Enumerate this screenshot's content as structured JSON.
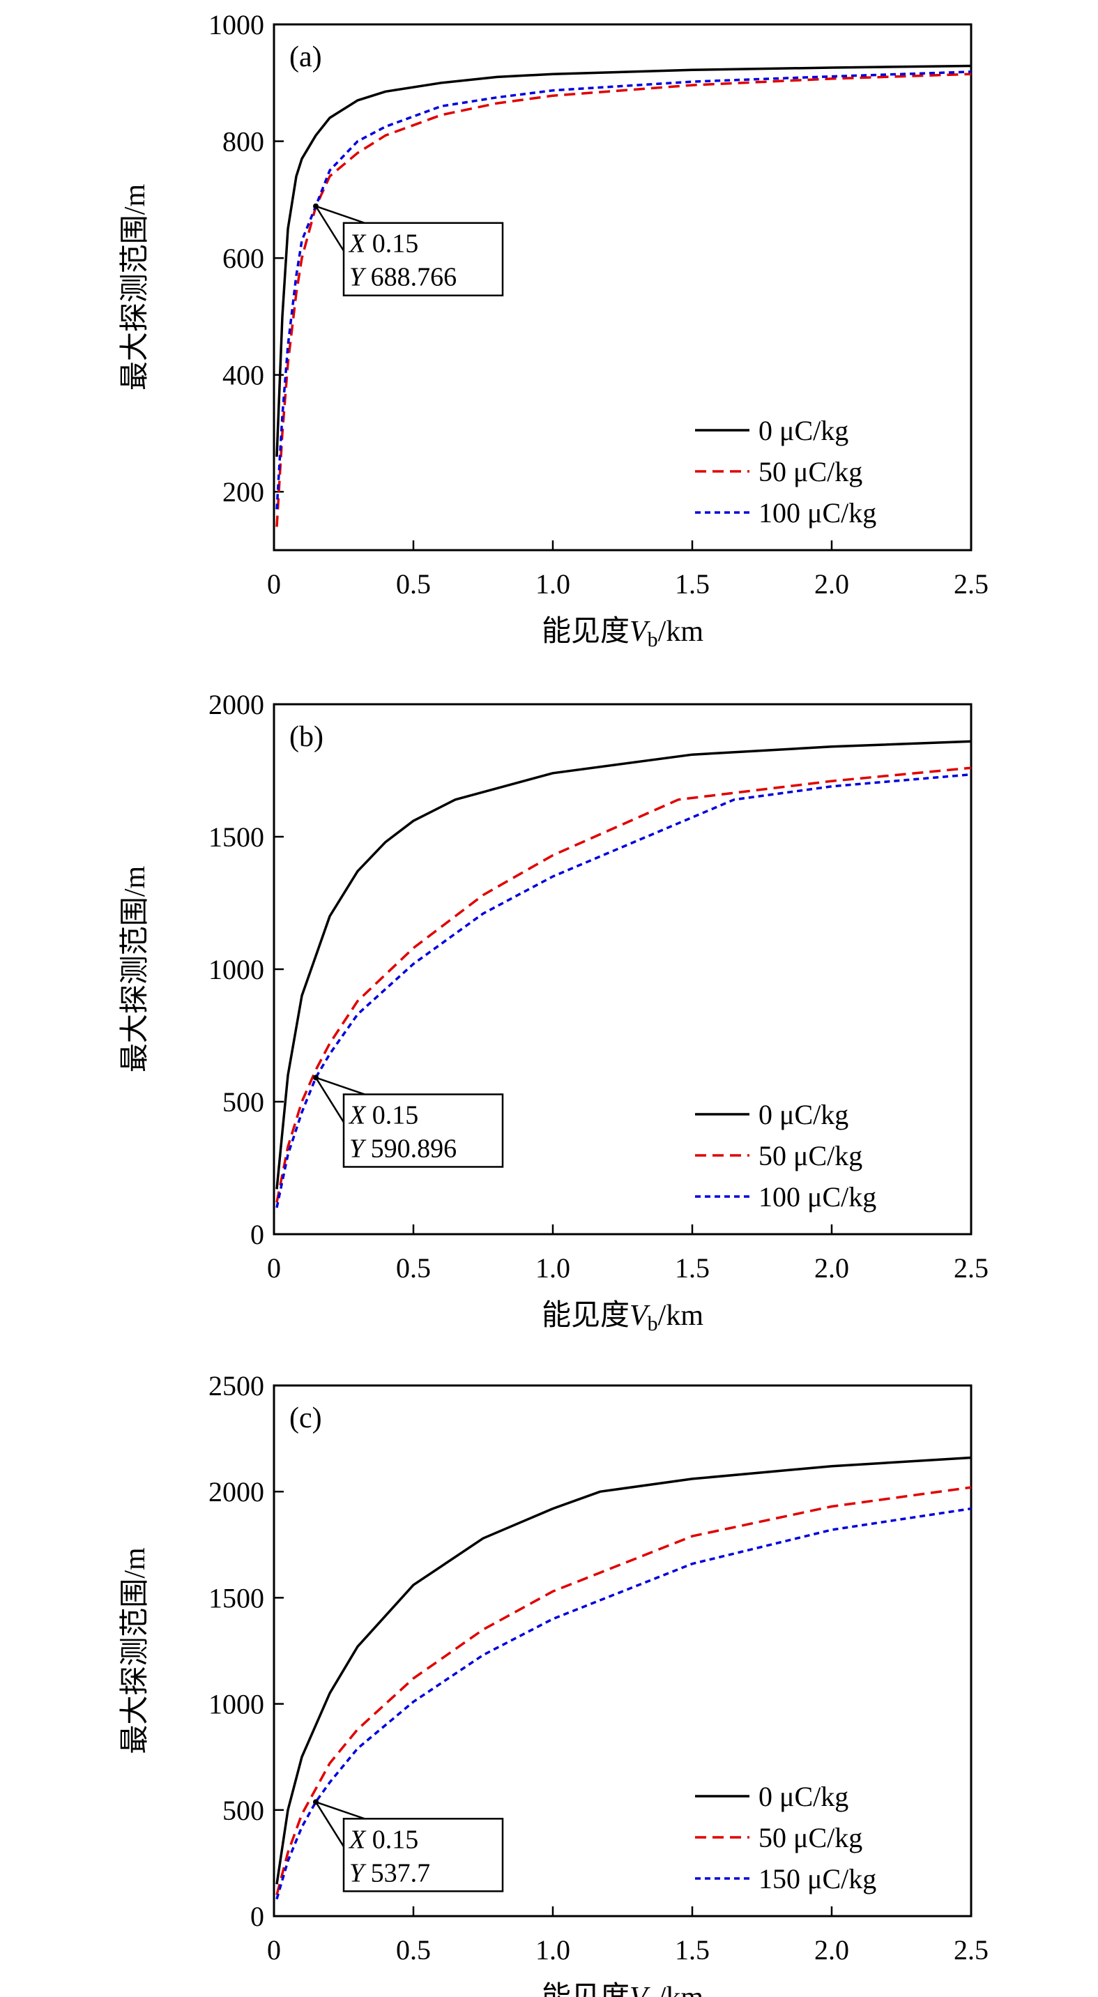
{
  "chart_data": [
    {
      "type": "line",
      "panel_label": "(a)",
      "xlabel": "能见度V_b/km",
      "xlabel_main": "能见度",
      "xlabel_var": "V",
      "xlabel_sub": "b",
      "xlabel_unit": "/km",
      "ylabel": "最大探测范围/m",
      "xlim": [
        0,
        2.5
      ],
      "ylim": [
        100,
        1000
      ],
      "xticks": [
        0,
        0.5,
        1.0,
        1.5,
        2.0,
        2.5
      ],
      "xtick_labels": [
        "0",
        "0.5",
        "1.0",
        "1.5",
        "2.0",
        "2.5"
      ],
      "yticks": [
        200,
        400,
        600,
        800,
        1000
      ],
      "ytick_labels": [
        "200",
        "400",
        "600",
        "800",
        "1000"
      ],
      "legend_position": "bottom-right",
      "annotation": {
        "x": 0.15,
        "y": 688.766,
        "x_label": "X",
        "x_text": "0.15",
        "y_label": "Y",
        "y_text": "688.766"
      },
      "series": [
        {
          "name": "0 μC/kg",
          "color": "#000000",
          "dash": "solid",
          "x": [
            0.01,
            0.03,
            0.05,
            0.08,
            0.1,
            0.15,
            0.2,
            0.3,
            0.4,
            0.6,
            0.8,
            1.0,
            1.5,
            2.0,
            2.5
          ],
          "y": [
            260,
            500,
            650,
            740,
            770,
            810,
            840,
            870,
            885,
            900,
            910,
            915,
            922,
            926,
            929
          ]
        },
        {
          "name": "50 μC/kg",
          "color": "#e00000",
          "dash": "dashed",
          "x": [
            0.01,
            0.03,
            0.05,
            0.08,
            0.1,
            0.15,
            0.2,
            0.3,
            0.4,
            0.6,
            0.8,
            1.0,
            1.5,
            2.0,
            2.5
          ],
          "y": [
            140,
            300,
            420,
            540,
            600,
            688,
            740,
            780,
            810,
            845,
            865,
            878,
            896,
            907,
            915
          ]
        },
        {
          "name": "100 μC/kg",
          "color": "#0000dd",
          "dash": "dotted",
          "x": [
            0.01,
            0.03,
            0.05,
            0.08,
            0.1,
            0.15,
            0.2,
            0.3,
            0.4,
            0.6,
            0.8,
            1.0,
            1.5,
            2.0,
            2.5
          ],
          "y": [
            170,
            330,
            450,
            570,
            630,
            689,
            750,
            800,
            825,
            860,
            875,
            887,
            902,
            911,
            919
          ]
        }
      ]
    },
    {
      "type": "line",
      "panel_label": "(b)",
      "xlabel": "能见度V_b/km",
      "xlabel_main": "能见度",
      "xlabel_var": "V",
      "xlabel_sub": "b",
      "xlabel_unit": "/km",
      "ylabel": "最大探测范围/m",
      "xlim": [
        0,
        2.5
      ],
      "ylim": [
        0,
        2000
      ],
      "xticks": [
        0,
        0.5,
        1.0,
        1.5,
        2.0,
        2.5
      ],
      "xtick_labels": [
        "0",
        "0.5",
        "1.0",
        "1.5",
        "2.0",
        "2.5"
      ],
      "yticks": [
        0,
        500,
        1000,
        1500,
        2000
      ],
      "ytick_labels": [
        "0",
        "500",
        "1000",
        "1500",
        "2000"
      ],
      "legend_position": "bottom-right",
      "annotation": {
        "x": 0.15,
        "y": 590.896,
        "x_label": "X",
        "x_text": "0.15",
        "y_label": "Y",
        "y_text": "590.896"
      },
      "series": [
        {
          "name": "0 μC/kg",
          "color": "#000000",
          "dash": "solid",
          "x": [
            0.01,
            0.05,
            0.1,
            0.2,
            0.3,
            0.4,
            0.5,
            0.65,
            1.0,
            1.5,
            2.0,
            2.5
          ],
          "y": [
            170,
            600,
            900,
            1200,
            1370,
            1480,
            1560,
            1640,
            1740,
            1810,
            1840,
            1860
          ]
        },
        {
          "name": "50 μC/kg",
          "color": "#e00000",
          "dash": "dashed",
          "x": [
            0.01,
            0.05,
            0.1,
            0.15,
            0.2,
            0.3,
            0.5,
            0.75,
            1.0,
            1.45,
            2.0,
            2.5
          ],
          "y": [
            120,
            330,
            500,
            620,
            720,
            880,
            1080,
            1280,
            1430,
            1640,
            1710,
            1760
          ]
        },
        {
          "name": "100 μC/kg",
          "color": "#0000dd",
          "dash": "dotted",
          "x": [
            0.01,
            0.05,
            0.1,
            0.15,
            0.2,
            0.3,
            0.5,
            0.75,
            1.0,
            1.65,
            2.0,
            2.5
          ],
          "y": [
            100,
            300,
            460,
            591,
            680,
            830,
            1020,
            1210,
            1350,
            1640,
            1690,
            1735
          ]
        }
      ]
    },
    {
      "type": "line",
      "panel_label": "(c)",
      "xlabel": "能见度V_b/km",
      "xlabel_main": "能见度",
      "xlabel_var": "V",
      "xlabel_sub": "b",
      "xlabel_unit": "/km",
      "ylabel": "最大探测范围/m",
      "xlim": [
        0,
        2.5
      ],
      "ylim": [
        0,
        2500
      ],
      "xticks": [
        0,
        0.5,
        1.0,
        1.5,
        2.0,
        2.5
      ],
      "xtick_labels": [
        "0",
        "0.5",
        "1.0",
        "1.5",
        "2.0",
        "2.5"
      ],
      "yticks": [
        0,
        500,
        1000,
        1500,
        2000,
        2500
      ],
      "ytick_labels": [
        "0",
        "500",
        "1000",
        "1500",
        "2000",
        "2500"
      ],
      "legend_position": "bottom-right",
      "annotation": {
        "x": 0.15,
        "y": 537.7,
        "x_label": "X",
        "x_text": "0.15",
        "y_label": "Y",
        "y_text": "537.7"
      },
      "series": [
        {
          "name": "0 μC/kg",
          "color": "#000000",
          "dash": "solid",
          "x": [
            0.01,
            0.05,
            0.1,
            0.2,
            0.3,
            0.5,
            0.75,
            1.0,
            1.17,
            1.5,
            2.0,
            2.5
          ],
          "y": [
            150,
            500,
            750,
            1050,
            1270,
            1560,
            1780,
            1920,
            2000,
            2060,
            2120,
            2160
          ]
        },
        {
          "name": "50 μC/kg",
          "color": "#e00000",
          "dash": "dashed",
          "x": [
            0.01,
            0.05,
            0.1,
            0.15,
            0.2,
            0.3,
            0.5,
            0.75,
            1.0,
            1.5,
            2.0,
            2.5
          ],
          "y": [
            100,
            300,
            480,
            600,
            720,
            880,
            1120,
            1350,
            1530,
            1790,
            1930,
            2020
          ]
        },
        {
          "name": "150 μC/kg",
          "color": "#0000dd",
          "dash": "dotted",
          "x": [
            0.01,
            0.05,
            0.1,
            0.15,
            0.2,
            0.3,
            0.5,
            0.75,
            1.0,
            1.5,
            2.0,
            2.5
          ],
          "y": [
            80,
            260,
            420,
            538,
            630,
            790,
            1010,
            1230,
            1400,
            1660,
            1820,
            1920
          ]
        }
      ]
    }
  ]
}
